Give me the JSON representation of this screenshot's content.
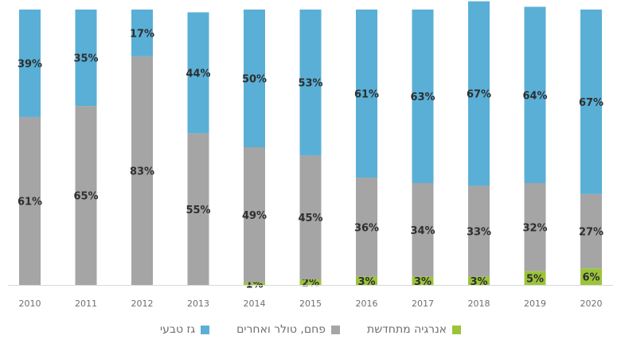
{
  "chart_data": {
    "type": "bar",
    "stacked": true,
    "percent": true,
    "categories": [
      "2010",
      "2011",
      "2012",
      "2013",
      "2014",
      "2015",
      "2016",
      "2017",
      "2018",
      "2019",
      "2020"
    ],
    "series": [
      {
        "name": "אנרגיה מתחדשת",
        "color": "#9bc43a",
        "values": [
          0,
          0,
          0,
          0,
          1,
          2,
          3,
          3,
          3,
          5,
          6
        ],
        "labels": [
          "",
          "",
          "",
          "",
          "1%",
          "2%",
          "3%",
          "3%",
          "3%",
          "5%",
          "6%"
        ]
      },
      {
        "name": "פחם, טולר ואחרים",
        "color": "#a5a5a5",
        "values": [
          61,
          65,
          83,
          55,
          49,
          45,
          36,
          34,
          33,
          32,
          27
        ],
        "labels": [
          "61%",
          "65%",
          "83%",
          "55%",
          "49%",
          "45%",
          "36%",
          "34%",
          "33%",
          "32%",
          "27%"
        ]
      },
      {
        "name": "גז טבעי",
        "color": "#5aafd6",
        "values": [
          39,
          35,
          17,
          44,
          50,
          53,
          61,
          63,
          67,
          64,
          67
        ],
        "labels": [
          "39%",
          "35%",
          "17%",
          "44%",
          "50%",
          "53%",
          "61%",
          "63%",
          "67%",
          "64%",
          "67%"
        ]
      }
    ],
    "ylim": [
      0,
      100
    ],
    "grid": false,
    "legend": "bottom"
  }
}
